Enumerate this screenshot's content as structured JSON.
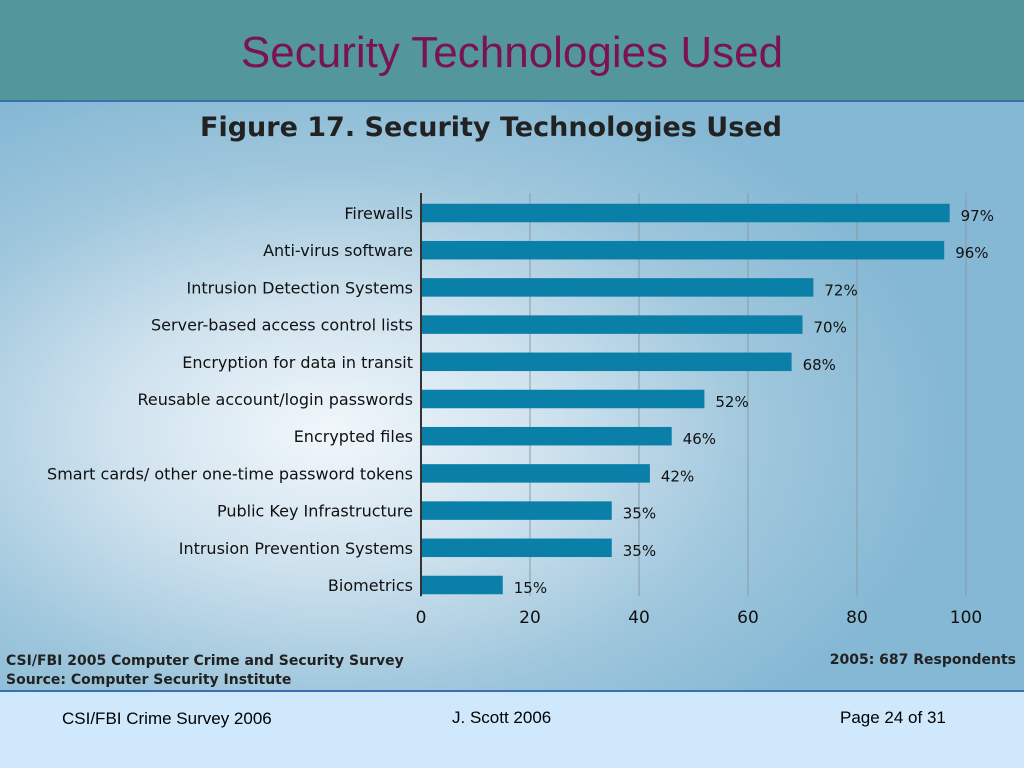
{
  "slide": {
    "title": "Security Technologies Used"
  },
  "figure": {
    "title": "Figure 17. Security Technologies Used",
    "source_line1": "CSI/FBI 2005 Computer Crime and Security Survey",
    "source_line2": "Source: Computer Security Institute",
    "respondents": "2005: 687 Respondents"
  },
  "chart_data": {
    "type": "bar",
    "orientation": "horizontal",
    "title": "Figure 17. Security Technologies Used",
    "categories": [
      "Firewalls",
      "Anti-virus software",
      "Intrusion Detection Systems",
      "Server-based access control lists",
      "Encryption for data in transit",
      "Reusable account/login passwords",
      "Encrypted files",
      "Smart cards/ other one-time password tokens",
      "Public Key Infrastructure",
      "Intrusion Prevention Systems",
      "Biometrics"
    ],
    "values": [
      97,
      96,
      72,
      70,
      68,
      52,
      46,
      42,
      35,
      35,
      15
    ],
    "value_labels": [
      "97%",
      "96%",
      "72%",
      "70%",
      "68%",
      "52%",
      "46%",
      "42%",
      "35%",
      "35%",
      "15%"
    ],
    "xlim": [
      0,
      100
    ],
    "xticks": [
      0,
      20,
      40,
      60,
      80,
      100
    ],
    "xtick_labels": [
      "0",
      "20",
      "40",
      "60",
      "80",
      "100"
    ],
    "grid": true,
    "bar_color": "#0a7fa8"
  },
  "footer": {
    "left": "CSI/FBI Crime Survey 2006",
    "center": "J. Scott  2006",
    "right": "Page 24 of 31"
  }
}
